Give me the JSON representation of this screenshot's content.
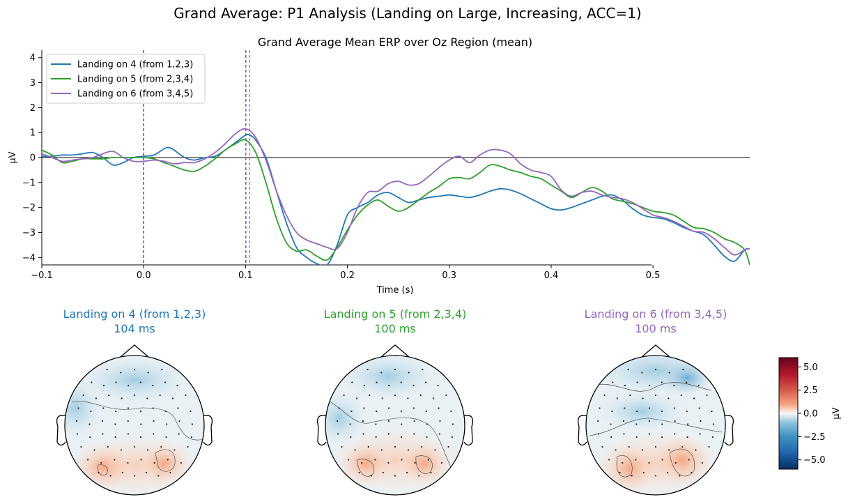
{
  "figure_title": "Grand Average: P1 Analysis (Landing on Large, Increasing, ACC=1)",
  "colors": {
    "series_4": "#1f77b4",
    "series_5": "#2ca02c",
    "series_6": "#9467bd",
    "axes": "#000000"
  },
  "chart_data": [
    {
      "type": "line",
      "title": "Grand Average Mean ERP over Oz Region (mean)",
      "xlabel": "Time (s)",
      "ylabel": "µV",
      "xlim": [
        -0.1,
        0.595
      ],
      "ylim": [
        -4.3,
        4.3
      ],
      "x_ticks": [
        -0.1,
        0.0,
        0.1,
        0.2,
        0.3,
        0.4,
        0.5
      ],
      "x_tick_labels": [
        "−0.1",
        "0.0",
        "0.1",
        "0.2",
        "0.3",
        "0.4",
        "0.5"
      ],
      "y_ticks": [
        -4,
        -3,
        -2,
        -1,
        0,
        1,
        2,
        3,
        4
      ],
      "y_tick_labels": [
        "−4",
        "−3",
        "−2",
        "−1",
        "0",
        "1",
        "2",
        "3",
        "4"
      ],
      "grid": false,
      "legend_position": "top-left",
      "stimulus_onset_line": 0.0,
      "peak_markers": [
        {
          "time": 0.104,
          "color": "#1f77b4"
        },
        {
          "time": 0.1,
          "color": "#2ca02c"
        },
        {
          "time": 0.1,
          "color": "#9467bd"
        }
      ],
      "series": [
        {
          "name": "Landing on 4 (from 1,2,3)",
          "color": "#1f77b4",
          "x": [
            -0.1,
            -0.09,
            -0.08,
            -0.07,
            -0.06,
            -0.05,
            -0.04,
            -0.03,
            -0.02,
            -0.01,
            0.0,
            0.01,
            0.02,
            0.025,
            0.03,
            0.04,
            0.05,
            0.06,
            0.07,
            0.08,
            0.09,
            0.1,
            0.104,
            0.11,
            0.12,
            0.13,
            0.14,
            0.15,
            0.16,
            0.17,
            0.18,
            0.19,
            0.2,
            0.21,
            0.22,
            0.23,
            0.24,
            0.25,
            0.26,
            0.27,
            0.28,
            0.29,
            0.3,
            0.31,
            0.32,
            0.33,
            0.34,
            0.35,
            0.36,
            0.37,
            0.38,
            0.39,
            0.4,
            0.41,
            0.42,
            0.43,
            0.44,
            0.45,
            0.46,
            0.47,
            0.48,
            0.49,
            0.5,
            0.51,
            0.52,
            0.53,
            0.54,
            0.55,
            0.56,
            0.57,
            0.58,
            0.59,
            0.595
          ],
          "y": [
            0.05,
            0.05,
            0.1,
            0.1,
            0.15,
            0.2,
            0.0,
            -0.3,
            -0.2,
            0.0,
            0.05,
            0.1,
            0.35,
            0.4,
            0.3,
            0.0,
            -0.1,
            0.0,
            0.05,
            0.3,
            0.6,
            0.9,
            0.9,
            0.7,
            0.0,
            -1.3,
            -2.6,
            -3.6,
            -4.0,
            -4.25,
            -4.3,
            -3.5,
            -2.3,
            -2.0,
            -1.8,
            -1.5,
            -1.4,
            -1.6,
            -1.8,
            -1.7,
            -1.6,
            -1.55,
            -1.5,
            -1.55,
            -1.6,
            -1.5,
            -1.35,
            -1.25,
            -1.3,
            -1.45,
            -1.65,
            -1.85,
            -2.05,
            -2.1,
            -2.0,
            -1.85,
            -1.7,
            -1.55,
            -1.5,
            -1.7,
            -2.05,
            -2.3,
            -2.4,
            -2.45,
            -2.6,
            -2.8,
            -2.95,
            -3.1,
            -3.5,
            -3.95,
            -4.15,
            -3.7,
            -3.65
          ]
        },
        {
          "name": "Landing on 5 (from 2,3,4)",
          "color": "#2ca02c",
          "x": [
            -0.1,
            -0.09,
            -0.08,
            -0.07,
            -0.06,
            -0.05,
            -0.04,
            -0.03,
            -0.02,
            -0.01,
            0.0,
            0.01,
            0.02,
            0.03,
            0.04,
            0.05,
            0.06,
            0.07,
            0.08,
            0.09,
            0.1,
            0.11,
            0.12,
            0.13,
            0.14,
            0.15,
            0.16,
            0.17,
            0.18,
            0.19,
            0.2,
            0.21,
            0.22,
            0.23,
            0.24,
            0.25,
            0.26,
            0.27,
            0.28,
            0.29,
            0.3,
            0.31,
            0.32,
            0.33,
            0.34,
            0.35,
            0.36,
            0.37,
            0.38,
            0.39,
            0.4,
            0.41,
            0.42,
            0.43,
            0.44,
            0.45,
            0.46,
            0.47,
            0.48,
            0.49,
            0.5,
            0.51,
            0.52,
            0.53,
            0.54,
            0.55,
            0.56,
            0.57,
            0.58,
            0.59,
            0.595
          ],
          "y": [
            0.3,
            0.1,
            -0.2,
            -0.15,
            -0.05,
            -0.05,
            -0.05,
            0.0,
            0.0,
            0.0,
            0.0,
            -0.05,
            -0.2,
            -0.35,
            -0.5,
            -0.55,
            -0.35,
            -0.05,
            0.3,
            0.55,
            0.7,
            0.2,
            -1.0,
            -2.4,
            -3.4,
            -3.75,
            -3.7,
            -3.95,
            -4.1,
            -3.6,
            -2.9,
            -2.3,
            -1.9,
            -1.7,
            -1.95,
            -2.15,
            -2.0,
            -1.7,
            -1.4,
            -1.15,
            -0.85,
            -0.8,
            -0.85,
            -0.6,
            -0.3,
            -0.35,
            -0.5,
            -0.6,
            -0.75,
            -0.85,
            -1.1,
            -1.35,
            -1.6,
            -1.4,
            -1.2,
            -1.35,
            -1.65,
            -1.75,
            -1.85,
            -2.0,
            -2.15,
            -2.2,
            -2.3,
            -2.55,
            -2.8,
            -2.85,
            -3.0,
            -3.25,
            -3.4,
            -3.7,
            -4.3
          ]
        },
        {
          "name": "Landing on 6 (from 3,4,5)",
          "color": "#9467bd",
          "x": [
            -0.1,
            -0.09,
            -0.08,
            -0.07,
            -0.06,
            -0.05,
            -0.04,
            -0.03,
            -0.02,
            -0.01,
            0.0,
            0.01,
            0.02,
            0.03,
            0.04,
            0.05,
            0.06,
            0.07,
            0.08,
            0.09,
            0.1,
            0.11,
            0.12,
            0.13,
            0.14,
            0.15,
            0.16,
            0.17,
            0.18,
            0.19,
            0.2,
            0.21,
            0.22,
            0.23,
            0.24,
            0.25,
            0.26,
            0.27,
            0.28,
            0.29,
            0.3,
            0.31,
            0.32,
            0.33,
            0.34,
            0.35,
            0.36,
            0.37,
            0.38,
            0.39,
            0.4,
            0.41,
            0.42,
            0.43,
            0.44,
            0.45,
            0.46,
            0.47,
            0.48,
            0.49,
            0.5,
            0.51,
            0.52,
            0.53,
            0.54,
            0.55,
            0.56,
            0.57,
            0.58,
            0.59,
            0.595
          ],
          "y": [
            0.15,
            0.0,
            -0.15,
            -0.1,
            -0.05,
            0.0,
            0.15,
            0.25,
            0.0,
            -0.15,
            -0.15,
            -0.1,
            -0.15,
            -0.25,
            -0.2,
            -0.2,
            -0.05,
            0.2,
            0.55,
            0.95,
            1.15,
            0.8,
            -0.1,
            -1.3,
            -2.3,
            -3.0,
            -3.3,
            -3.45,
            -3.6,
            -3.65,
            -3.0,
            -2.0,
            -1.4,
            -1.35,
            -1.05,
            -0.95,
            -1.1,
            -1.05,
            -0.75,
            -0.4,
            -0.1,
            0.05,
            -0.2,
            0.1,
            0.3,
            0.3,
            0.15,
            -0.25,
            -0.5,
            -0.6,
            -0.75,
            -1.3,
            -1.55,
            -1.4,
            -1.35,
            -1.5,
            -1.6,
            -1.65,
            -1.8,
            -2.05,
            -2.3,
            -2.4,
            -2.55,
            -2.75,
            -2.95,
            -3.0,
            -3.25,
            -3.6,
            -3.9,
            -3.7,
            -3.65
          ]
        }
      ]
    },
    {
      "type": "heatmap",
      "topomaps": [
        {
          "label": "Landing on 4 (from 1,2,3)",
          "latency": "104 ms",
          "color": "#1f77b4"
        },
        {
          "label": "Landing on 5 (from 2,3,4)",
          "latency": "100 ms",
          "color": "#2ca02c"
        },
        {
          "label": "Landing on 6 (from 3,4,5)",
          "latency": "100 ms",
          "color": "#9467bd"
        }
      ],
      "colorbar": {
        "label": "µV",
        "range": [
          -6.0,
          6.0
        ],
        "ticks": [
          5.0,
          2.5,
          0.0,
          -2.5,
          -5.0
        ],
        "tick_labels": [
          "5.0",
          "2.5",
          "0.0",
          "−2.5",
          "−5.0"
        ],
        "colormap": "RdBu_r"
      }
    }
  ]
}
